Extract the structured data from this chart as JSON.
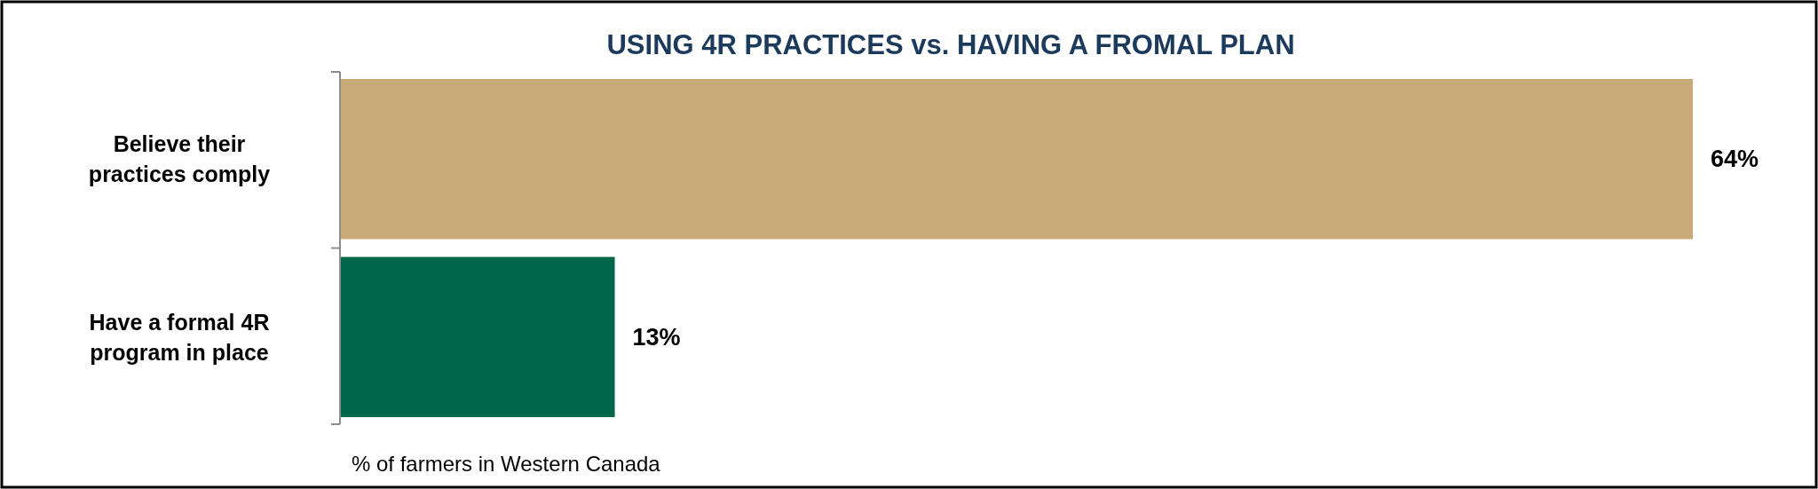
{
  "chart_data": {
    "type": "bar",
    "orientation": "horizontal",
    "title": "USING 4R PRACTICES vs. HAVING A FROMAL PLAN",
    "xlabel": "% of farmers in Western Canada",
    "categories": [
      "Believe their practices comply",
      "Have a formal 4R program in place"
    ],
    "values": [
      64,
      13
    ],
    "colors": [
      "#c9a978",
      "#00664a"
    ],
    "value_labels": [
      "64%",
      "13%"
    ],
    "relative": false
  }
}
